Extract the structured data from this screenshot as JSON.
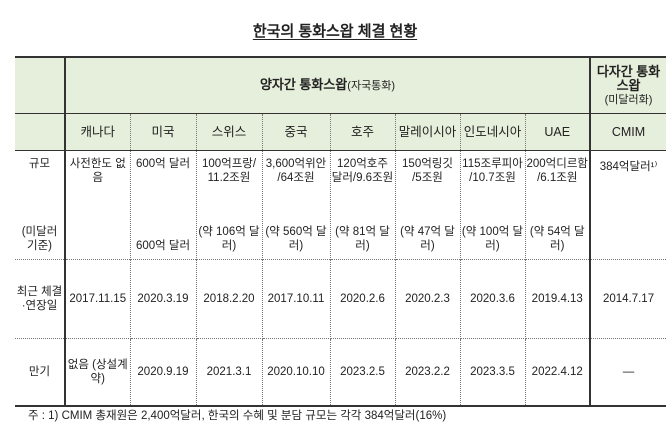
{
  "title": "한국의 통화스왑 체결 현황",
  "header": {
    "bilateral": "양자간 통화스왑",
    "bilateral_sub": "(자국통화)",
    "multilateral": "다자간 통화스왑",
    "multilateral_sub": "(미달러화)"
  },
  "columns": [
    "캐나다",
    "미국",
    "스위스",
    "중국",
    "호주",
    "말레이시아",
    "인도네시아",
    "UAE",
    "CMIM"
  ],
  "row_labels": {
    "scale": "규모",
    "scale_sub": "(미달러 기준)",
    "date": "최근 체결·연장일",
    "maturity": "만기"
  },
  "scale": [
    "사전한도 없음",
    "600억 달러",
    "100억프랑/ 11.2조원",
    "3,600억위안 /64조원",
    "120억호주 달러/9.6조원",
    "150억링깃 /5조원",
    "115조루피아 /10.7조원",
    "200억디르함 /6.1조원",
    "384억달러¹⁾"
  ],
  "scale_usd": [
    "",
    "600억 달러",
    "(약 106억 달러)",
    "(약 560억 달러)",
    "(약 81억 달러)",
    "(약 47억 달러)",
    "(약 100억 달러)",
    "(약 54억 달러)",
    ""
  ],
  "dates": [
    "2017.11.15",
    "2020.3.19",
    "2018.2.20",
    "2017.10.11",
    "2020.2.6",
    "2020.2.3",
    "2020.3.6",
    "2019.4.13",
    "2014.7.17"
  ],
  "maturity": [
    "없음 (상설계약)",
    "2020.9.19",
    "2021.3.1",
    "2020.10.10",
    "2023.2.5",
    "2023.2.2",
    "2023.3.5",
    "2022.4.12",
    "—"
  ],
  "note": "주 : 1) CMIM 총재원은 2,400억달러, 한국의 수혜 및 분담 규모는 각각 384억달러(16%)"
}
